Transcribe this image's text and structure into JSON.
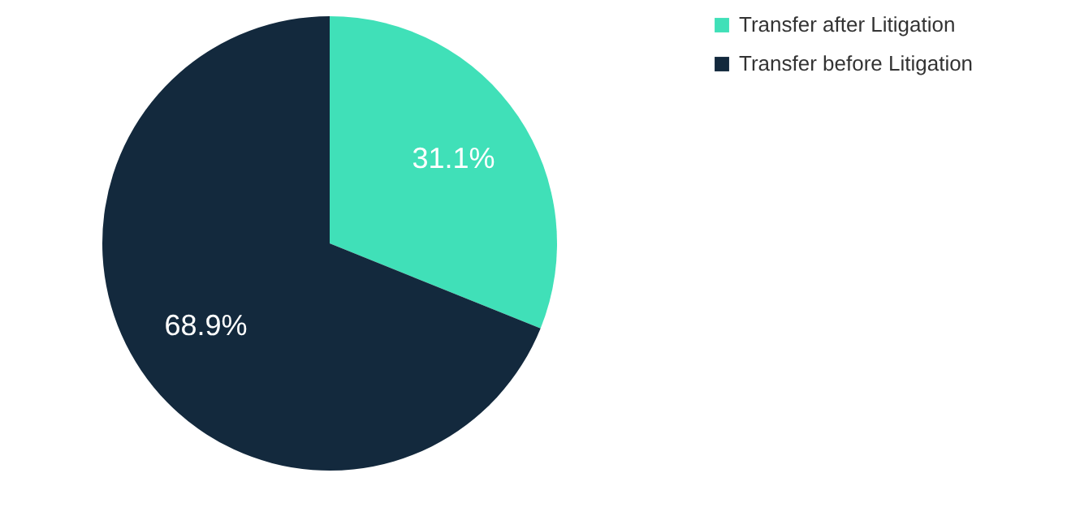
{
  "chart_data": {
    "type": "pie",
    "categories": [
      "Transfer after Litigation",
      "Transfer before Litigation"
    ],
    "values": [
      31.1,
      68.9
    ],
    "colors": [
      "#40e0b8",
      "#13293d"
    ],
    "value_labels": [
      "31.1%",
      "68.9%"
    ],
    "legend": "right"
  }
}
